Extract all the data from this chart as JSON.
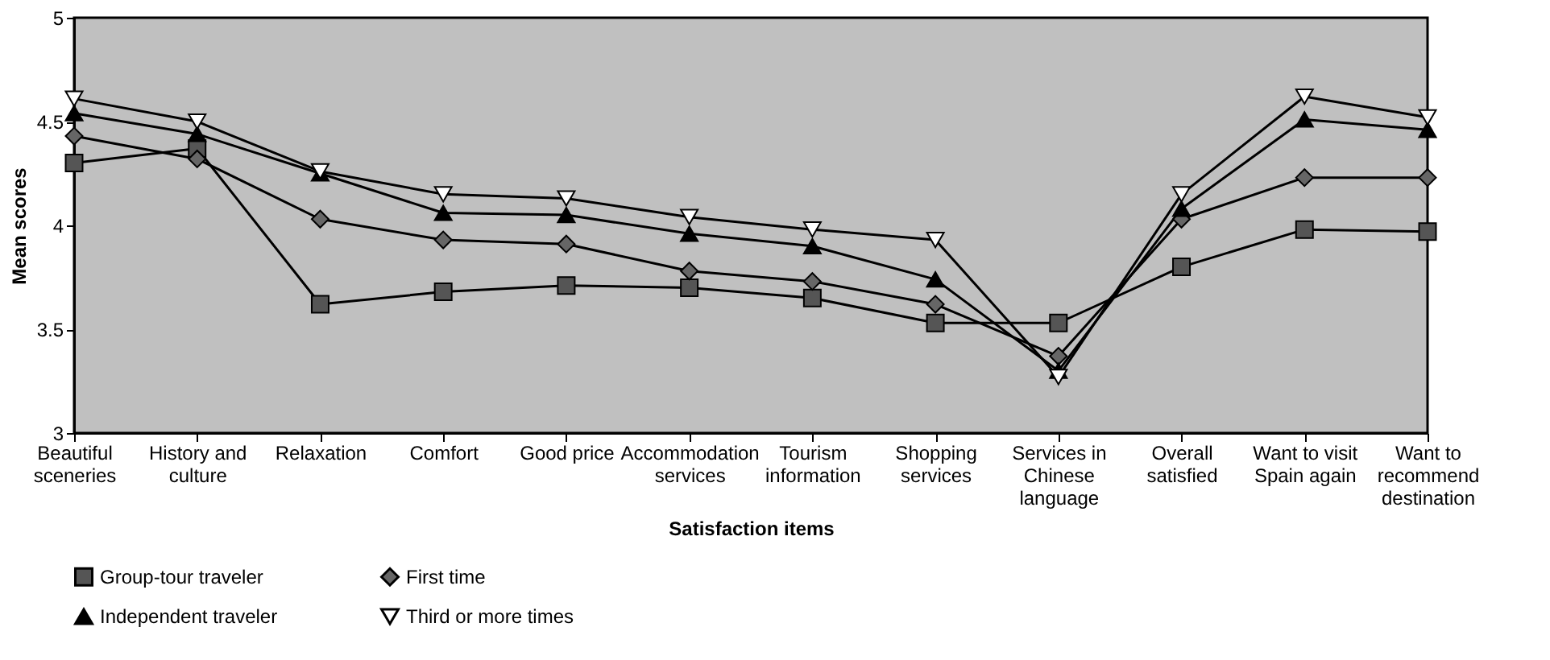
{
  "chart_data": {
    "type": "line",
    "xlabel": "Satisfaction items",
    "ylabel": "Mean scores",
    "categories": [
      "Beautiful sceneries",
      "History and culture",
      "Relaxation",
      "Comfort",
      "Good price",
      "Accommodation services",
      "Tourism information",
      "Shopping services",
      "Services in Chinese language",
      "Overall satisfied",
      "Want to visit Spain again",
      "Want to recommend destination"
    ],
    "series": [
      {
        "name": "Group-tour traveler",
        "color": "#555555",
        "marker": "square",
        "values": [
          4.3,
          4.37,
          3.62,
          3.68,
          3.71,
          3.7,
          3.65,
          3.53,
          3.53,
          3.8,
          3.98,
          3.97
        ]
      },
      {
        "name": "First time",
        "color": "#666666",
        "marker": "diamond",
        "values": [
          4.43,
          4.32,
          4.03,
          3.93,
          3.91,
          3.78,
          3.73,
          3.62,
          3.37,
          4.03,
          4.23,
          4.23
        ]
      },
      {
        "name": "Independent traveler",
        "color": "#000000",
        "marker": "triangle",
        "values": [
          4.54,
          4.44,
          4.25,
          4.06,
          4.05,
          3.96,
          3.9,
          3.74,
          3.3,
          4.08,
          4.51,
          4.46
        ]
      },
      {
        "name": "Third or more times",
        "color": "#ffffff",
        "marker": "triangle-down",
        "values": [
          4.61,
          4.5,
          4.26,
          4.15,
          4.13,
          4.04,
          3.98,
          3.93,
          3.27,
          4.15,
          4.62,
          4.52
        ]
      }
    ],
    "ylim": [
      3,
      5
    ],
    "yticks": [
      3,
      3.5,
      4,
      4.5,
      5
    ],
    "grid": false,
    "legend": "bottom",
    "line_style": "solid"
  }
}
